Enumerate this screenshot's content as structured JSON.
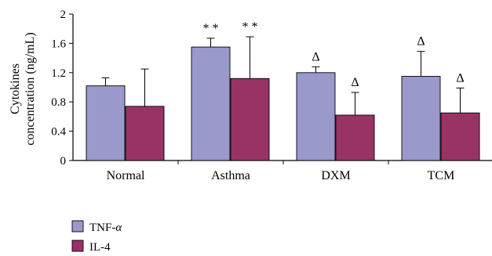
{
  "chart_data": {
    "type": "bar",
    "ylabel_line1": "Cytokines",
    "ylabel_line2": "concentration (ng/mL)",
    "ylim": [
      0,
      2
    ],
    "yticks": [
      "0",
      "0.4",
      "0.8",
      "1.2",
      "1.6",
      "2"
    ],
    "categories": [
      "Normal",
      "Asthma",
      "DXM",
      "TCM"
    ],
    "series": [
      {
        "name": "TNF-α",
        "name_base": "TNF-",
        "name_symbol": "α",
        "color": "#9999cc",
        "values": [
          1.02,
          1.55,
          1.2,
          1.15
        ],
        "errors": [
          0.11,
          0.12,
          0.08,
          0.34
        ],
        "markers": [
          "",
          "**",
          "Δ",
          "Δ"
        ]
      },
      {
        "name": "IL-4",
        "name_base": "IL-4",
        "name_symbol": "",
        "color": "#993366",
        "values": [
          0.74,
          1.12,
          0.62,
          0.65
        ],
        "errors": [
          0.51,
          0.57,
          0.31,
          0.34
        ],
        "markers": [
          "",
          "**",
          "Δ",
          "Δ"
        ]
      }
    ],
    "legend_position": "bottom-left"
  }
}
